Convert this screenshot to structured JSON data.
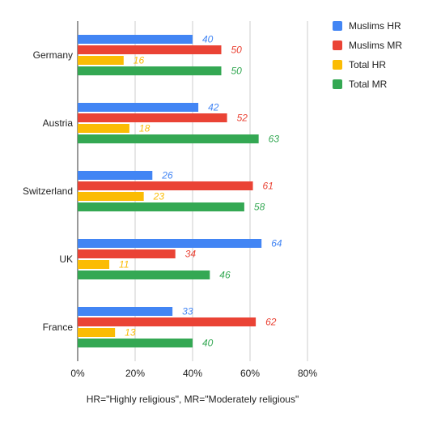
{
  "chart_data": {
    "type": "bar",
    "orientation": "horizontal",
    "categories": [
      "Germany",
      "Austria",
      "Switzerland",
      "UK",
      "France"
    ],
    "series": [
      {
        "name": "Muslims HR",
        "color": "#4285F4",
        "values": [
          40,
          42,
          26,
          64,
          33
        ]
      },
      {
        "name": "Muslims MR",
        "color": "#EA4335",
        "values": [
          50,
          52,
          61,
          34,
          62
        ]
      },
      {
        "name": "Total HR",
        "color": "#FBBC04",
        "values": [
          16,
          18,
          23,
          11,
          13
        ]
      },
      {
        "name": "Total MR",
        "color": "#34A853",
        "values": [
          50,
          63,
          58,
          46,
          40
        ]
      }
    ],
    "xlim": [
      0,
      80
    ],
    "xticks": [
      "0%",
      "20%",
      "40%",
      "60%",
      "80%"
    ],
    "xlabel": "HR=\"Highly religious\", MR=\"Moderately religious\"",
    "ylabel": "",
    "grid": true,
    "legend": "right"
  }
}
